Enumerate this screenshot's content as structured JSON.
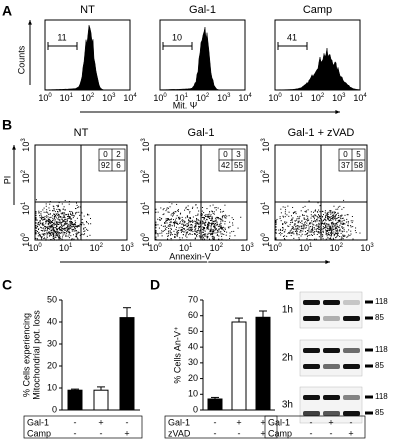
{
  "log_ticks": [
    {
      "base": "10",
      "exp": "0"
    },
    {
      "base": "10",
      "exp": "1"
    },
    {
      "base": "10",
      "exp": "2"
    },
    {
      "base": "10",
      "exp": "3"
    },
    {
      "base": "10",
      "exp": "4"
    }
  ],
  "panels": {
    "A": {
      "letter": "A",
      "titles": [
        "NT",
        "Gal-1",
        "Camp"
      ],
      "markers": [
        "11",
        "10",
        "41"
      ],
      "y_label": "Counts",
      "x_label": "Mit. Ψ"
    },
    "B": {
      "letter": "B",
      "titles": [
        "NT",
        "Gal-1",
        "Gal-1 + zVAD"
      ],
      "quadrants": [
        [
          0,
          2,
          92,
          6
        ],
        [
          0,
          3,
          42,
          55
        ],
        [
          0,
          5,
          37,
          58
        ]
      ],
      "y_label": "PI",
      "x_label": "Annexin-V"
    },
    "E": {
      "letter": "E",
      "times": [
        "1h",
        "2h",
        "3h"
      ],
      "mw_markers": [
        "118",
        "85"
      ],
      "rows": [
        {
          "name": "Gal-1",
          "signs": [
            "-",
            "+",
            "-"
          ]
        },
        {
          "name": "Camp",
          "signs": [
            "-",
            "-",
            "+"
          ]
        }
      ]
    }
  },
  "chart_data": [
    {
      "type": "bar",
      "letter": "C",
      "y_label": [
        "% Cells experiencing",
        "Mitochondrial pot. loss"
      ],
      "values": [
        9,
        9,
        42
      ],
      "errors": [
        0.5,
        1.5,
        4.5
      ],
      "colors": [
        "#000000",
        "#ffffff",
        "#000000"
      ],
      "ylim": [
        0,
        50
      ],
      "yticks": [
        0,
        10,
        20,
        30,
        40,
        50
      ],
      "conditions": [
        {
          "name": "Gal-1",
          "signs": [
            "-",
            "+",
            "-"
          ]
        },
        {
          "name": "Camp",
          "signs": [
            "-",
            "-",
            "+"
          ]
        }
      ]
    },
    {
      "type": "bar",
      "letter": "D",
      "y_label": [
        "% Cells An-V⁺"
      ],
      "values": [
        7,
        56,
        59
      ],
      "errors": [
        1,
        2.5,
        4
      ],
      "colors": [
        "#000000",
        "#ffffff",
        "#000000"
      ],
      "ylim": [
        0,
        70
      ],
      "yticks": [
        0,
        10,
        20,
        30,
        40,
        50,
        60,
        70
      ],
      "conditions": [
        {
          "name": "Gal-1",
          "signs": [
            "-",
            "+",
            "+"
          ]
        },
        {
          "name": "zVAD",
          "signs": [
            "-",
            "-",
            "+"
          ]
        }
      ]
    }
  ]
}
